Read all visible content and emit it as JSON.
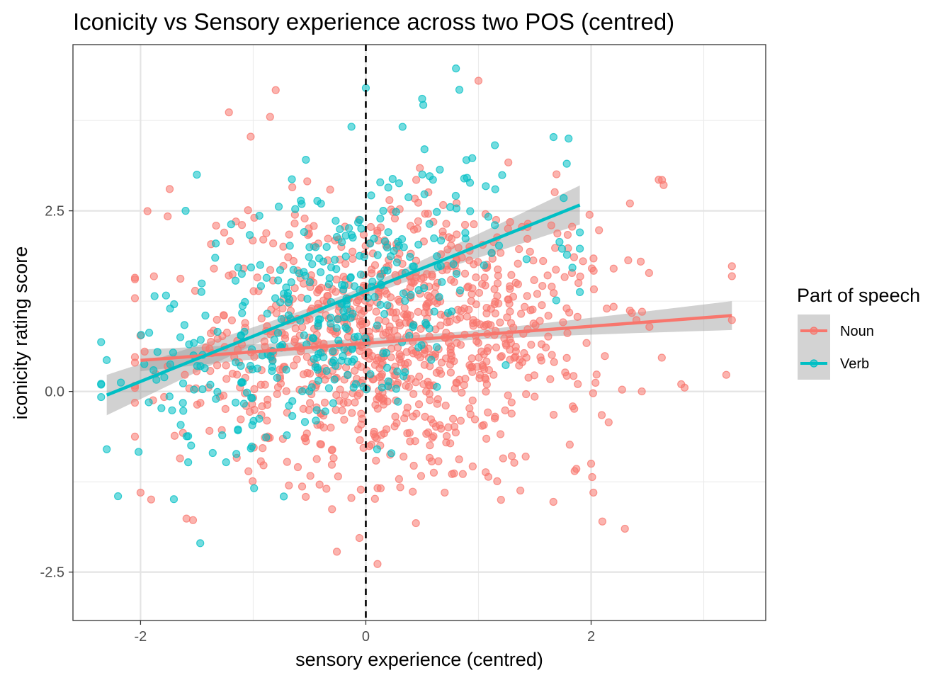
{
  "chart_data": {
    "type": "scatter",
    "title": "Iconicity vs Sensory experience across two POS (centred)",
    "xlabel": "sensory experience (centred)",
    "ylabel": "iconicity rating score",
    "xlim": [
      -2.6,
      3.55
    ],
    "ylim": [
      -3.17,
      4.8
    ],
    "x_major_ticks": [
      -2,
      0,
      2
    ],
    "x_tick_labels": [
      "-2",
      "0",
      "2"
    ],
    "y_major_ticks": [
      -2.5,
      0,
      2.5
    ],
    "y_tick_labels": [
      "-2.5",
      "0.0",
      "2.5"
    ],
    "grid": true,
    "reference_line": {
      "x": 0,
      "style": "dashed"
    },
    "legend": {
      "title": "Part of speech",
      "position": "right",
      "entries": [
        "Noun",
        "Verb"
      ]
    },
    "series": [
      {
        "name": "Noun",
        "color": "#F8766D",
        "fit": {
          "x0": -2.0,
          "y0": 0.43,
          "x1": 3.25,
          "y1": 1.05,
          "se_at_ends": [
            0.15,
            0.2
          ],
          "se_center": 0.06
        },
        "highlight_points": [
          [
            -0.85,
            3.8
          ],
          [
            -0.8,
            4.17
          ],
          [
            1.0,
            4.3
          ],
          [
            2.6,
            2.93
          ],
          [
            2.2,
            1.7
          ],
          [
            2.3,
            -1.9
          ],
          [
            2.0,
            -1.0
          ],
          [
            2.1,
            -1.8
          ],
          [
            3.2,
            0.23
          ],
          [
            2.8,
            0.1
          ],
          [
            -2.0,
            -1.4
          ],
          [
            1.2,
            -1.5
          ],
          [
            0.7,
            -1.4
          ],
          [
            -0.3,
            -1.63
          ]
        ]
      },
      {
        "name": "Verb",
        "color": "#00BFC4",
        "fit": {
          "x0": -2.3,
          "y0": -0.05,
          "x1": 1.9,
          "y1": 2.58,
          "se_at_ends": [
            0.28,
            0.27
          ],
          "se_center": 0.07
        },
        "highlight_points": [
          [
            -1.5,
            3.0
          ],
          [
            0.8,
            4.47
          ],
          [
            0.5,
            4.05
          ],
          [
            0.0,
            4.2
          ],
          [
            -1.47,
            -2.1
          ],
          [
            -2.3,
            -0.8
          ],
          [
            -2.2,
            -1.45
          ],
          [
            1.8,
            3.5
          ],
          [
            -1.6,
            2.5
          ],
          [
            0.1,
            -0.8
          ]
        ]
      }
    ]
  }
}
